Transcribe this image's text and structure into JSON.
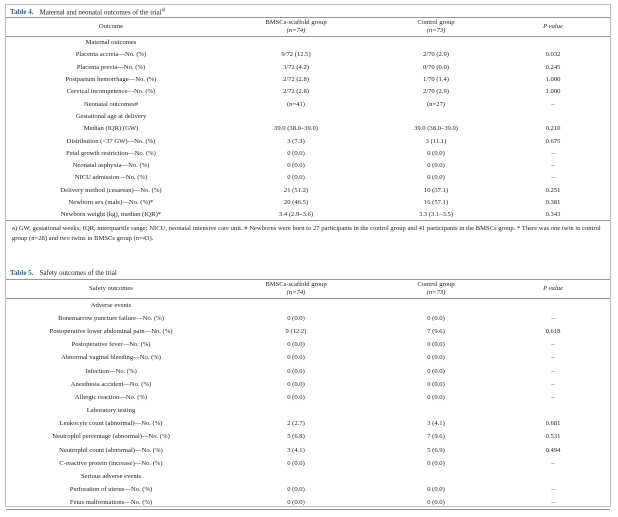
{
  "tables": [
    {
      "label": "Table 4.",
      "title": "Maternal and neonatal outcomes of the trial",
      "title_note": "a)",
      "header": [
        [
          "Outcome"
        ],
        [
          "BMSCs-scaffold group",
          "(n=74)"
        ],
        [
          "Control group",
          "(n=73)"
        ],
        [
          "P value"
        ]
      ],
      "rows": [
        [
          "Maternal outcomes"
        ],
        [
          "Placenta accreta—No. (%)",
          "9/72 (12.5)",
          "2/70 (2.9)",
          "0.032"
        ],
        [
          "Placenta previa—No. (%)",
          "3/72 (4.2)",
          "0/70 (0.0)",
          "0.245"
        ],
        [
          "Postpartum hemorrhage—No. (%)",
          "2/72 (2.8)",
          "1/70 (1.4)",
          "1.000"
        ],
        [
          "Cervical incompetence—No. (%)",
          "2/72 (2.8)",
          "2/70 (2.9)",
          "1.000"
        ],
        [
          "Neonatal outcomes#",
          "(n=41)",
          "(n=27)",
          "–"
        ],
        [
          "Gestational age at delivery"
        ],
        [
          "Median (IQR) (GW)",
          "39.0 (38.0–39.0)",
          "39.0 (38.0–39.0)",
          "0.210"
        ],
        [
          "Distribution (<37 GW)—No. (%)",
          "3 (7.3)",
          "3 (11.1)",
          "0.675"
        ],
        [
          "Fetal growth restriction—No. (%)",
          "0 (0.0)",
          "0 (0.0)",
          "–"
        ],
        [
          "Neonatal asphyxia—No. (%)",
          "0 (0.0)",
          "0 (0.0)",
          "–"
        ],
        [
          "NICU admission—No. (%)",
          "0 (0.0)",
          "0 (0.0)",
          "–"
        ],
        [
          "Delivery method (cesarean)—No. (%)",
          "21 (51.2)",
          "10 (37.1)",
          "0.251"
        ],
        [
          "Newborn sex (male)—No. (%)*",
          "20 (46.5)",
          "16 (57.1)",
          "0.381"
        ],
        [
          "Newborn weight (kg), median (IQR)*",
          "3.4 (2.9–3.6)",
          "3.3 (3.1–3.5)",
          "0.343"
        ]
      ],
      "footnote": "a) GW, gestational weeks; IQR, interquartile range; NICU, neonatal intensive care unit. # Newborns were born to 27 participants in the control group and 41 participants in the BMSCs group. * There was one twin in control group (n=28) and two twins in BMSCs group (n=43)."
    },
    {
      "label": "Table 5.",
      "title": "Safety outcomes of the trial",
      "header": [
        [
          "Safety outcomes"
        ],
        [
          "BMSCs-scaffold group",
          "(n=74)"
        ],
        [
          "Control group",
          "(n=73)"
        ],
        [
          "P value"
        ]
      ],
      "rows": [
        [
          "Adverse events"
        ],
        [
          "Bonemarrow puncture failure—No. (%)",
          "0 (0.0)",
          "0 (0.0)",
          "–"
        ],
        [
          "Postoperative lower abdominal pain—No. (%)",
          "9 (12.2)",
          "7 (9.6)",
          "0.618"
        ],
        [
          "Postoperative fever—No. (%)",
          "0 (0.0)",
          "0 (0.0)",
          "–"
        ],
        [
          "Abnormal vaginal bleeding—No. (%)",
          "0 (0.0)",
          "0 (0.0)",
          "–"
        ],
        [
          "Infection—No. (%)",
          "0 (0.0)",
          "0 (0.0)",
          "–"
        ],
        [
          "Anesthesia accident—No. (%)",
          "0 (0.0)",
          "0 (0.0)",
          "–"
        ],
        [
          "Allergic reaction—No. (%)",
          "0 (0.0)",
          "0 (0.0)",
          "–"
        ],
        [
          "Laboratory testing"
        ],
        [
          "Leukocyte count (abnormal)—No. (%)",
          "2 (2.7)",
          "3 (4.1)",
          "0.681"
        ],
        [
          "Neutrophil percentage (abnormal)—No. (%)",
          "5 (6.8)",
          "7 (9.6)",
          "0.531"
        ],
        [
          "Neutrophil count (abnormal)—No. (%)",
          "3 (4.1)",
          "5 (6.9)",
          "0.494"
        ],
        [
          "C-reactive protein (increase)—No. (%)",
          "0 (0.0)",
          "0 (0.0)",
          "–"
        ],
        [
          "Serious adverse events"
        ],
        [
          "Perforation of uterus—No. (%)",
          "0 (0.0)",
          "0 (0.0)",
          "–"
        ],
        [
          "Fetus malformations—No. (%)",
          "0 (0.0)",
          "0 (0.0)",
          "–"
        ]
      ]
    }
  ]
}
